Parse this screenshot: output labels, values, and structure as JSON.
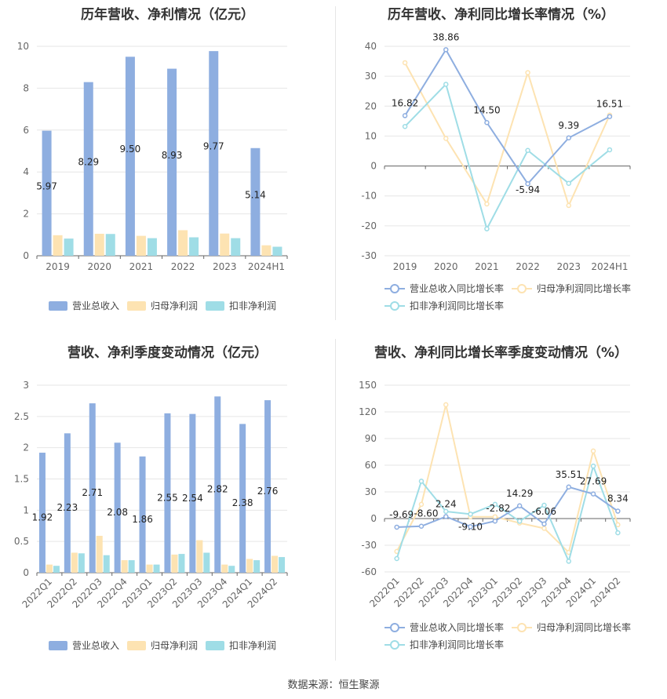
{
  "source_label": "数据来源：恒生聚源",
  "colors": {
    "revenue": "#8eaee0",
    "net_profit": "#fde3b2",
    "deducted_profit": "#9fdde6",
    "revenue_line": "#8eaee0",
    "net_line": "#fde3b2",
    "deducted_line": "#9fdde6",
    "grid": "#e6e6e6",
    "axis_text": "#666666"
  },
  "chart_data": [
    {
      "type": "bar",
      "title": "历年营收、净利情况（亿元）",
      "categories": [
        "2019",
        "2020",
        "2021",
        "2022",
        "2023",
        "2024H1"
      ],
      "ylim": [
        0,
        10
      ],
      "yticks": [
        0,
        2,
        4,
        6,
        8,
        10
      ],
      "legend_position": "bottom",
      "series": [
        {
          "name": "营业总收入",
          "values": [
            5.97,
            8.29,
            9.5,
            8.93,
            9.77,
            5.14
          ],
          "labels": [
            "5.97",
            "8.29",
            "9.50",
            "8.93",
            "9.77",
            "5.14"
          ]
        },
        {
          "name": "归母净利润",
          "values": [
            0.98,
            1.05,
            0.95,
            1.22,
            1.06,
            0.5
          ]
        },
        {
          "name": "扣非净利润",
          "values": [
            0.82,
            1.04,
            0.84,
            0.88,
            0.84,
            0.43
          ]
        }
      ]
    },
    {
      "type": "line",
      "title": "历年营收、净利同比增长率情况（%）",
      "categories": [
        "2019",
        "2020",
        "2021",
        "2022",
        "2023",
        "2024H1"
      ],
      "ylim": [
        -30,
        40
      ],
      "yticks": [
        -30,
        -20,
        -10,
        0,
        10,
        20,
        30,
        40
      ],
      "legend_position": "bottom",
      "series": [
        {
          "name": "营业总收入同比增长率",
          "values": [
            16.82,
            38.86,
            14.5,
            -5.94,
            9.39,
            16.51
          ],
          "labels": [
            "16.82",
            "38.86",
            "14.50",
            "-5.94",
            "9.39",
            "16.51"
          ]
        },
        {
          "name": "归母净利润同比增长率",
          "values": [
            34.5,
            9.2,
            -12.7,
            31.2,
            -13.2,
            17.0
          ]
        },
        {
          "name": "扣非净利润同比增长率",
          "values": [
            13.2,
            27.3,
            -21.0,
            5.2,
            -5.8,
            5.4
          ]
        }
      ]
    },
    {
      "type": "bar",
      "title": "营收、净利季度变动情况（亿元）",
      "categories": [
        "2022Q1",
        "2022Q2",
        "2022Q3",
        "2022Q4",
        "2023Q1",
        "2023Q2",
        "2023Q3",
        "2023Q4",
        "2024Q1",
        "2024Q2"
      ],
      "ylim": [
        0,
        3
      ],
      "yticks": [
        0,
        0.5,
        1,
        1.5,
        2,
        2.5,
        3
      ],
      "legend_position": "bottom",
      "series": [
        {
          "name": "营业总收入",
          "values": [
            1.92,
            2.23,
            2.71,
            2.08,
            1.86,
            2.55,
            2.54,
            2.82,
            2.38,
            2.76
          ],
          "labels": [
            "1.92",
            "2.23",
            "2.71",
            "2.08",
            "1.86",
            "2.55",
            "2.54",
            "2.82",
            "2.38",
            "2.76"
          ]
        },
        {
          "name": "归母净利润",
          "values": [
            0.13,
            0.32,
            0.59,
            0.2,
            0.13,
            0.29,
            0.52,
            0.13,
            0.22,
            0.27
          ]
        },
        {
          "name": "扣非净利润",
          "values": [
            0.11,
            0.31,
            0.28,
            0.2,
            0.13,
            0.3,
            0.32,
            0.11,
            0.2,
            0.25
          ]
        }
      ]
    },
    {
      "type": "line",
      "title": "营收、净利同比增长率季度变动情况（%）",
      "categories": [
        "2022Q1",
        "2022Q2",
        "2022Q3",
        "2022Q4",
        "2023Q1",
        "2023Q2",
        "2023Q3",
        "2023Q4",
        "2024Q1",
        "2024Q2"
      ],
      "ylim": [
        -60,
        150
      ],
      "yticks": [
        -60,
        -30,
        0,
        30,
        60,
        90,
        120,
        150
      ],
      "legend_position": "bottom",
      "series": [
        {
          "name": "营业总收入同比增长率",
          "values": [
            -9.69,
            -8.6,
            2.24,
            -9.1,
            -2.82,
            14.29,
            -6.06,
            35.51,
            27.69,
            8.34
          ],
          "labels": [
            "-9.69",
            "-8.60",
            "2.24",
            "-9.10",
            "-2.82",
            "14.29",
            "-6.06",
            "35.51",
            "27.69",
            "8.34"
          ]
        },
        {
          "name": "归母净利润同比增长率",
          "values": [
            -37,
            16,
            128,
            2,
            2,
            -5,
            -11,
            -38,
            76,
            -7
          ]
        },
        {
          "name": "扣非净利润同比增长率",
          "values": [
            -45,
            42,
            8,
            5,
            16,
            -3,
            15,
            -48,
            59,
            -16
          ]
        }
      ]
    }
  ]
}
